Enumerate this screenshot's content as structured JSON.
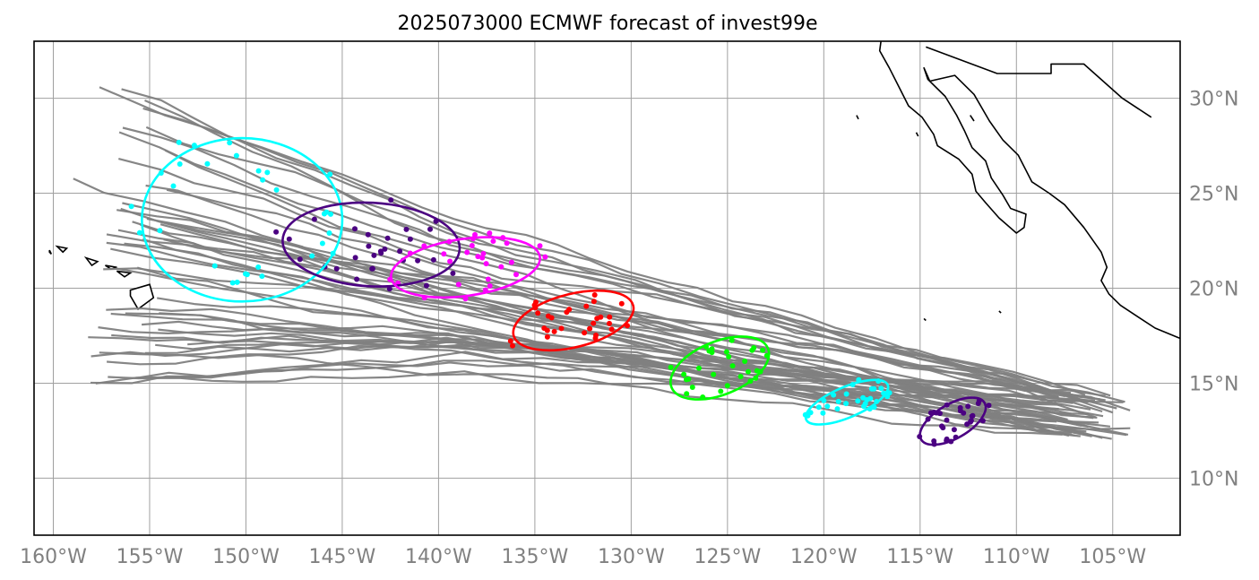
{
  "chart_data": {
    "type": "map-track-ensemble",
    "title": "2025073000 ECMWF forecast of invest99e",
    "xlim": [
      -161,
      -101.5
    ],
    "ylim": [
      7,
      33
    ],
    "x_ticks": [
      -160,
      -155,
      -150,
      -145,
      -140,
      -135,
      -130,
      -125,
      -120,
      -115,
      -110,
      -105
    ],
    "x_tick_labels": [
      "160°W",
      "155°W",
      "150°W",
      "145°W",
      "140°W",
      "135°W",
      "130°W",
      "125°W",
      "120°W",
      "115°W",
      "110°W",
      "105°W"
    ],
    "y_ticks": [
      10,
      15,
      20,
      25,
      30
    ],
    "y_tick_labels": [
      "10°N",
      "15°N",
      "20°N",
      "25°N",
      "30°N"
    ],
    "grid": true,
    "ensemble_track_color": "#808080",
    "ensemble_member_count": 50,
    "forecast_groups": [
      {
        "color": "#00ffff",
        "center": [
          -150.2,
          23.6
        ],
        "semi_axes": [
          5.2,
          4.3
        ],
        "angle": 0
      },
      {
        "color": "#4b0082",
        "center": [
          -143.5,
          22.3
        ],
        "semi_axes": [
          4.6,
          2.2
        ],
        "angle": -3
      },
      {
        "color": "#ff00ff",
        "center": [
          -138.6,
          21.1
        ],
        "semi_axes": [
          3.9,
          1.5
        ],
        "angle": 8
      },
      {
        "color": "#ff0000",
        "center": [
          -133.0,
          18.3
        ],
        "semi_axes": [
          3.2,
          1.4
        ],
        "angle": 14
      },
      {
        "color": "#00ff00",
        "center": [
          -125.4,
          15.8
        ],
        "semi_axes": [
          2.7,
          1.4
        ],
        "angle": 22
      },
      {
        "color": "#00ffff",
        "center": [
          -118.8,
          14.0
        ],
        "semi_axes": [
          2.3,
          0.8
        ],
        "angle": 23
      },
      {
        "color": "#4b0082",
        "center": [
          -113.3,
          13.0
        ],
        "semi_axes": [
          1.9,
          0.9
        ],
        "angle": 30
      }
    ]
  }
}
